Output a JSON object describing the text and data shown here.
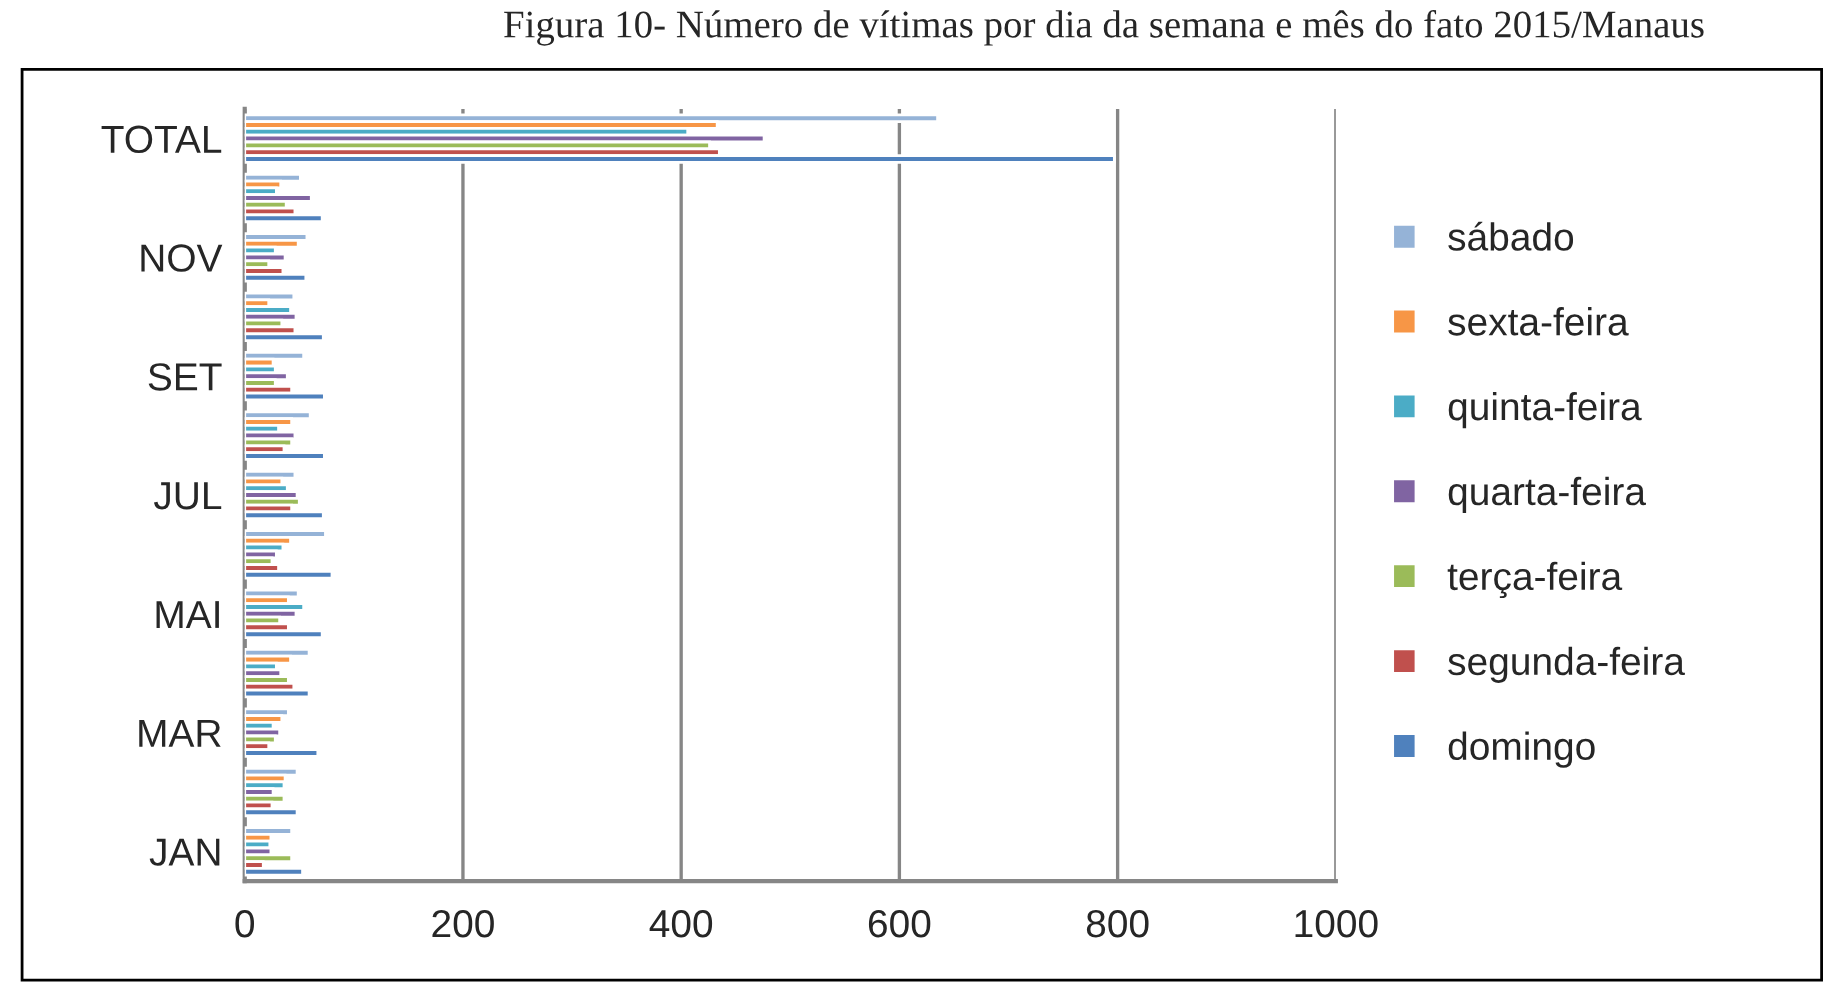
{
  "chart_data": {
    "type": "bar",
    "orientation": "horizontal",
    "title": "Figura 10- Número de vítimas por dia da semana e mês do fato 2015/Manaus",
    "categories": [
      "TOTAL",
      null,
      "NOV",
      null,
      "SET",
      null,
      "JUL",
      null,
      "MAI",
      null,
      "MAR",
      null,
      "JAN"
    ],
    "series": [
      {
        "name": "sábado",
        "color": "#95b3d7",
        "values": [
          635,
          51,
          57,
          45,
          54,
          60,
          46,
          74,
          49,
          59,
          40,
          48,
          43
        ]
      },
      {
        "name": "sexta-feira",
        "color": "#f79646",
        "values": [
          433,
          33,
          49,
          22,
          26,
          43,
          34,
          42,
          40,
          42,
          34,
          37,
          24
        ]
      },
      {
        "name": "quinta-feira",
        "color": "#4bacc6",
        "values": [
          406,
          29,
          28,
          42,
          28,
          31,
          39,
          35,
          54,
          29,
          26,
          36,
          23
        ]
      },
      {
        "name": "quarta-feira",
        "color": "#8064a2",
        "values": [
          476,
          61,
          37,
          47,
          39,
          46,
          48,
          29,
          47,
          33,
          32,
          26,
          24
        ]
      },
      {
        "name": "terça-feira",
        "color": "#9bbb59",
        "values": [
          426,
          38,
          22,
          34,
          28,
          43,
          50,
          25,
          32,
          40,
          28,
          36,
          43
        ]
      },
      {
        "name": "segunda-feira",
        "color": "#c0504d",
        "values": [
          435,
          46,
          35,
          46,
          43,
          36,
          43,
          31,
          40,
          45,
          22,
          25,
          17
        ]
      },
      {
        "name": "domingo",
        "color": "#4f81bd",
        "values": [
          797,
          71,
          56,
          72,
          73,
          73,
          72,
          80,
          71,
          59,
          67,
          48,
          53
        ]
      }
    ],
    "xlim": [
      0,
      1000
    ],
    "xticks": [
      0,
      200,
      400,
      600,
      800,
      1000
    ],
    "grid": "x",
    "legend": "right"
  }
}
